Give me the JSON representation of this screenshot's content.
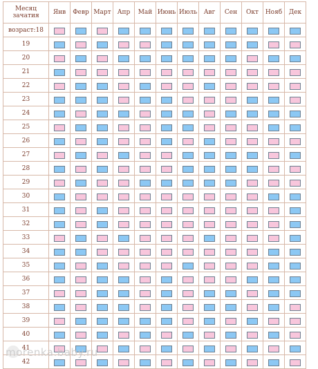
{
  "header": {
    "corner_label": "Месяц зачатия",
    "months": [
      "Янв",
      "Февр",
      "Март",
      "Апр",
      "Май",
      "Июнь",
      "Июль",
      "Авг",
      "Сен",
      "Окт",
      "Нояб",
      "Дек"
    ]
  },
  "legend_colors": {
    "boy": "#8cc8f4",
    "girl": "#f8c6dc"
  },
  "rows": [
    {
      "age": "возраст:18",
      "cells": [
        "pink",
        "blue",
        "pink",
        "blue",
        "blue",
        "blue",
        "blue",
        "blue",
        "blue",
        "blue",
        "blue",
        "blue"
      ]
    },
    {
      "age": "19",
      "cells": [
        "blue",
        "pink",
        "blue",
        "pink",
        "pink",
        "blue",
        "blue",
        "blue",
        "blue",
        "blue",
        "pink",
        "pink"
      ]
    },
    {
      "age": "20",
      "cells": [
        "pink",
        "blue",
        "pink",
        "blue",
        "blue",
        "blue",
        "blue",
        "blue",
        "blue",
        "pink",
        "blue",
        "blue"
      ]
    },
    {
      "age": "21",
      "cells": [
        "blue",
        "pink",
        "pink",
        "pink",
        "pink",
        "pink",
        "pink",
        "pink",
        "pink",
        "pink",
        "pink",
        "pink"
      ]
    },
    {
      "age": "22",
      "cells": [
        "pink",
        "blue",
        "blue",
        "pink",
        "blue",
        "pink",
        "pink",
        "blue",
        "pink",
        "pink",
        "pink",
        "pink"
      ]
    },
    {
      "age": "23",
      "cells": [
        "blue",
        "blue",
        "blue",
        "pink",
        "blue",
        "blue",
        "pink",
        "pink",
        "pink",
        "blue",
        "blue",
        "pink"
      ]
    },
    {
      "age": "24",
      "cells": [
        "blue",
        "pink",
        "blue",
        "blue",
        "pink",
        "blue",
        "blue",
        "pink",
        "blue",
        "blue",
        "blue",
        "blue"
      ]
    },
    {
      "age": "25",
      "cells": [
        "pink",
        "blue",
        "blue",
        "pink",
        "pink",
        "blue",
        "blue",
        "pink",
        "pink",
        "pink",
        "blue",
        "blue"
      ]
    },
    {
      "age": "26",
      "cells": [
        "blue",
        "pink",
        "blue",
        "pink",
        "pink",
        "blue",
        "pink",
        "blue",
        "pink",
        "pink",
        "pink",
        "pink"
      ]
    },
    {
      "age": "27",
      "cells": [
        "pink",
        "blue",
        "pink",
        "blue",
        "pink",
        "pink",
        "blue",
        "blue",
        "blue",
        "blue",
        "pink",
        "blue"
      ]
    },
    {
      "age": "28",
      "cells": [
        "blue",
        "pink",
        "blue",
        "pink",
        "pink",
        "pink",
        "blue",
        "blue",
        "blue",
        "blue",
        "pink",
        "pink"
      ]
    },
    {
      "age": "29",
      "cells": [
        "pink",
        "blue",
        "pink",
        "pink",
        "blue",
        "blue",
        "blue",
        "blue",
        "blue",
        "pink",
        "pink",
        "pink"
      ]
    },
    {
      "age": "30",
      "cells": [
        "blue",
        "pink",
        "pink",
        "pink",
        "pink",
        "pink",
        "pink",
        "pink",
        "pink",
        "pink",
        "blue",
        "blue"
      ]
    },
    {
      "age": "31",
      "cells": [
        "blue",
        "pink",
        "blue",
        "pink",
        "pink",
        "pink",
        "pink",
        "pink",
        "pink",
        "pink",
        "pink",
        "blue"
      ]
    },
    {
      "age": "32",
      "cells": [
        "blue",
        "pink",
        "blue",
        "pink",
        "pink",
        "pink",
        "pink",
        "pink",
        "pink",
        "pink",
        "pink",
        "blue"
      ]
    },
    {
      "age": "33",
      "cells": [
        "pink",
        "blue",
        "pink",
        "blue",
        "pink",
        "pink",
        "pink",
        "blue",
        "pink",
        "pink",
        "pink",
        "blue"
      ]
    },
    {
      "age": "34",
      "cells": [
        "blue",
        "blue",
        "pink",
        "pink",
        "pink",
        "pink",
        "pink",
        "pink",
        "pink",
        "pink",
        "blue",
        "blue"
      ]
    },
    {
      "age": "35",
      "cells": [
        "blue",
        "pink",
        "blue",
        "pink",
        "pink",
        "pink",
        "blue",
        "pink",
        "pink",
        "pink",
        "blue",
        "blue"
      ]
    },
    {
      "age": "36",
      "cells": [
        "blue",
        "pink",
        "blue",
        "blue",
        "pink",
        "blue",
        "pink",
        "pink",
        "pink",
        "blue",
        "blue",
        "blue"
      ]
    },
    {
      "age": "37",
      "cells": [
        "pink",
        "pink",
        "blue",
        "blue",
        "pink",
        "blue",
        "pink",
        "blue",
        "blue",
        "pink",
        "blue",
        "blue"
      ]
    },
    {
      "age": "38",
      "cells": [
        "blue",
        "pink",
        "blue",
        "blue",
        "pink",
        "blue",
        "pink",
        "blue",
        "blue",
        "pink",
        "blue",
        "pink"
      ]
    },
    {
      "age": "39",
      "cells": [
        "pink",
        "blue",
        "blue",
        "blue",
        "blue",
        "blue",
        "pink",
        "blue",
        "pink",
        "blue",
        "pink",
        "pink"
      ]
    },
    {
      "age": "40",
      "cells": [
        "blue",
        "pink",
        "blue",
        "pink",
        "blue",
        "pink",
        "blue",
        "pink",
        "blue",
        "pink",
        "blue",
        "pink"
      ]
    },
    {
      "age": "41",
      "cells": [
        "pink",
        "blue",
        "pink",
        "blue",
        "pink",
        "blue",
        "pink",
        "blue",
        "pink",
        "blue",
        "pink",
        "blue"
      ]
    },
    {
      "age": "42",
      "cells": [
        "blue",
        "pink",
        "blue",
        "pink",
        "blue",
        "pink",
        "blue",
        "pink",
        "blue",
        "pink",
        "blue",
        "pink"
      ]
    }
  ],
  "watermark": "morenka.baby.ru"
}
